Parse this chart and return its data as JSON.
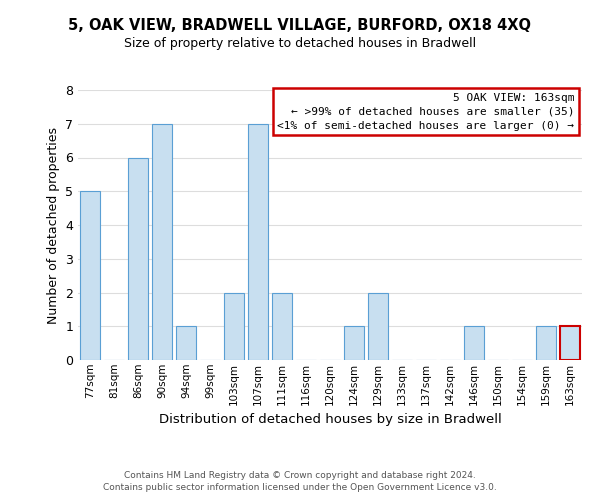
{
  "title": "5, OAK VIEW, BRADWELL VILLAGE, BURFORD, OX18 4XQ",
  "subtitle": "Size of property relative to detached houses in Bradwell",
  "xlabel": "Distribution of detached houses by size in Bradwell",
  "ylabel": "Number of detached properties",
  "bar_labels": [
    "77sqm",
    "81sqm",
    "86sqm",
    "90sqm",
    "94sqm",
    "99sqm",
    "103sqm",
    "107sqm",
    "111sqm",
    "116sqm",
    "120sqm",
    "124sqm",
    "129sqm",
    "133sqm",
    "137sqm",
    "142sqm",
    "146sqm",
    "150sqm",
    "154sqm",
    "159sqm",
    "163sqm"
  ],
  "bar_values": [
    5,
    0,
    6,
    7,
    1,
    0,
    2,
    7,
    2,
    0,
    0,
    1,
    2,
    0,
    0,
    0,
    1,
    0,
    0,
    1,
    1
  ],
  "bar_color": "#c8dff0",
  "bar_edge_color": "#5a9fd4",
  "highlight_index": 20,
  "highlight_bar_edge_color": "#cc0000",
  "ylim": [
    0,
    8
  ],
  "yticks": [
    0,
    1,
    2,
    3,
    4,
    5,
    6,
    7,
    8
  ],
  "legend_box_edge_color": "#cc0000",
  "legend_title": "5 OAK VIEW: 163sqm",
  "legend_line1": "← >99% of detached houses are smaller (35)",
  "legend_line2": "<1% of semi-detached houses are larger (0) →",
  "footer_line1": "Contains HM Land Registry data © Crown copyright and database right 2024.",
  "footer_line2": "Contains public sector information licensed under the Open Government Licence v3.0.",
  "grid_color": "#dddddd",
  "background_color": "#ffffff"
}
